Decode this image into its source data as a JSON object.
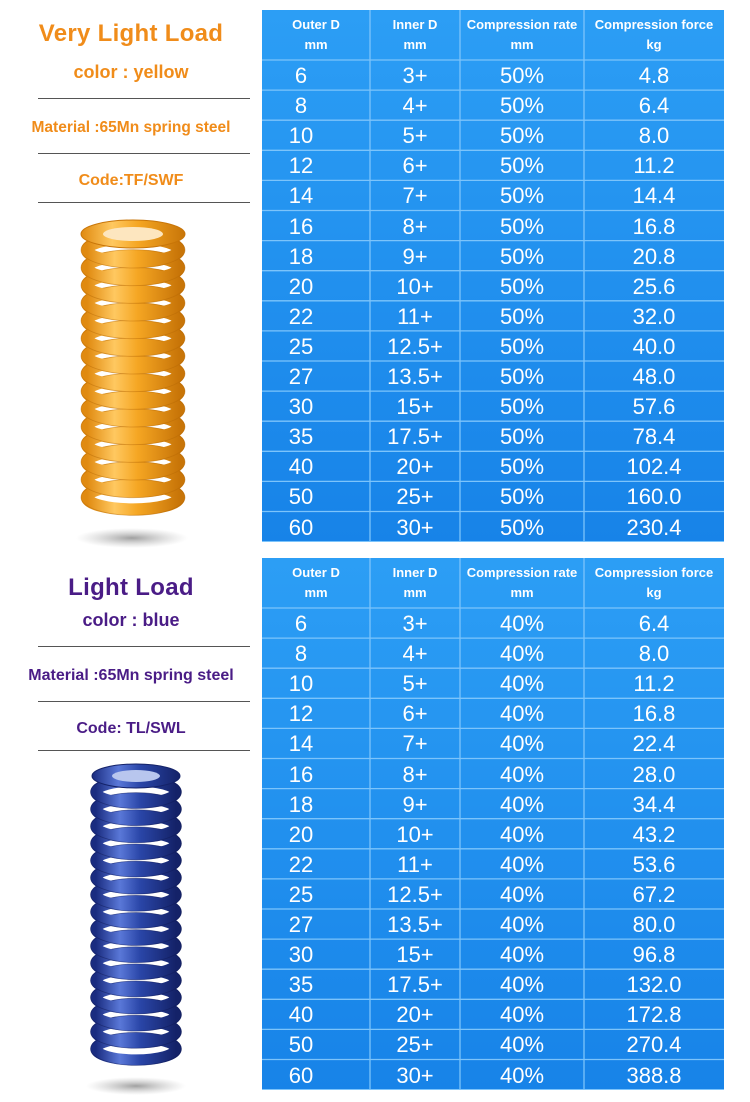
{
  "columns": [
    {
      "line1": "Outer D",
      "line2": "mm"
    },
    {
      "line1": "Inner D",
      "line2": "mm"
    },
    {
      "line1": "Compression rate",
      "line2": "mm"
    },
    {
      "line1": "Compression force",
      "line2": "kg"
    }
  ],
  "sections": [
    {
      "title": "Very Light Load",
      "color_label": "color :   yellow",
      "material": "Material :65Mn spring steel",
      "code": "Code:TF/SWF",
      "spring_color": "#f5a623",
      "text_color": "#f08c1a",
      "rows": [
        [
          "6",
          "3+",
          "50%",
          "4.8"
        ],
        [
          "8",
          "4+",
          "50%",
          "6.4"
        ],
        [
          "10",
          "5+",
          "50%",
          "8.0"
        ],
        [
          "12",
          "6+",
          "50%",
          "11.2"
        ],
        [
          "14",
          "7+",
          "50%",
          "14.4"
        ],
        [
          "16",
          "8+",
          "50%",
          "16.8"
        ],
        [
          "18",
          "9+",
          "50%",
          "20.8"
        ],
        [
          "20",
          "10+",
          "50%",
          "25.6"
        ],
        [
          "22",
          "11+",
          "50%",
          "32.0"
        ],
        [
          "25",
          "12.5+",
          "50%",
          "40.0"
        ],
        [
          "27",
          "13.5+",
          "50%",
          "48.0"
        ],
        [
          "30",
          "15+",
          "50%",
          "57.6"
        ],
        [
          "35",
          "17.5+",
          "50%",
          "78.4"
        ],
        [
          "40",
          "20+",
          "50%",
          "102.4"
        ],
        [
          "50",
          "25+",
          "50%",
          "160.0"
        ],
        [
          "60",
          "30+",
          "50%",
          "230.4"
        ]
      ]
    },
    {
      "title": "Light Load",
      "color_label": "color : blue",
      "material": "Material :65Mn spring steel",
      "code": "Code: TL/SWL",
      "spring_color": "#2a46a8",
      "text_color": "#4a1c86",
      "rows": [
        [
          "6",
          "3+",
          "40%",
          "6.4"
        ],
        [
          "8",
          "4+",
          "40%",
          "8.0"
        ],
        [
          "10",
          "5+",
          "40%",
          "11.2"
        ],
        [
          "12",
          "6+",
          "40%",
          "16.8"
        ],
        [
          "14",
          "7+",
          "40%",
          "22.4"
        ],
        [
          "16",
          "8+",
          "40%",
          "28.0"
        ],
        [
          "18",
          "9+",
          "40%",
          "34.4"
        ],
        [
          "20",
          "10+",
          "40%",
          "43.2"
        ],
        [
          "22",
          "11+",
          "40%",
          "53.6"
        ],
        [
          "25",
          "12.5+",
          "40%",
          "67.2"
        ],
        [
          "27",
          "13.5+",
          "40%",
          "80.0"
        ],
        [
          "30",
          "15+",
          "40%",
          "96.8"
        ],
        [
          "35",
          "17.5+",
          "40%",
          "132.0"
        ],
        [
          "40",
          "20+",
          "40%",
          "172.8"
        ],
        [
          "50",
          "25+",
          "40%",
          "270.4"
        ],
        [
          "60",
          "30+",
          "40%",
          "388.8"
        ]
      ]
    }
  ]
}
